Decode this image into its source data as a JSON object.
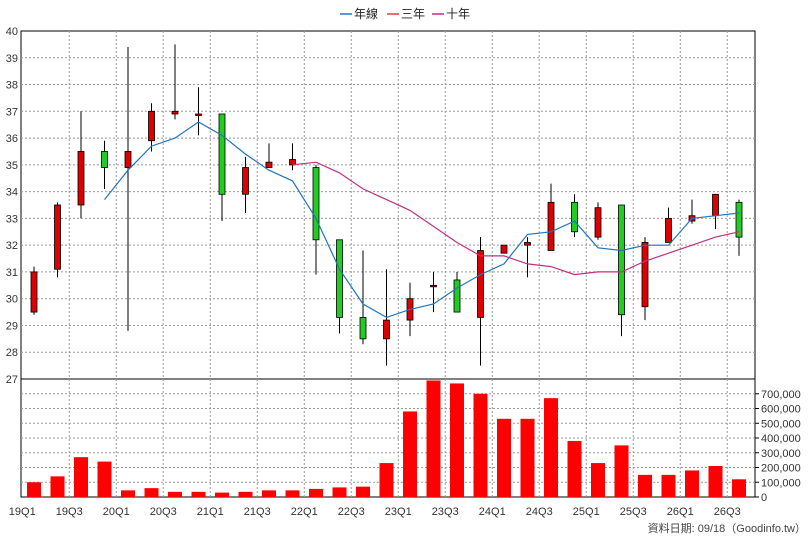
{
  "chart_data": {
    "type": "candlestick",
    "legend": {
      "placement": "top-center",
      "items": [
        {
          "label": "年線",
          "color": "#1f77c0"
        },
        {
          "label": "三年",
          "color": "#e04040"
        },
        {
          "label": "十年",
          "color": "#c03080"
        }
      ]
    },
    "colors": {
      "up": "#dd0000",
      "down": "#22cc22",
      "volume": "#ff0000",
      "grid": "#999999"
    },
    "grid": true,
    "price_axis": {
      "ylim": [
        27,
        40
      ],
      "ticks": [
        "27",
        "28",
        "29",
        "30",
        "31",
        "32",
        "33",
        "34",
        "35",
        "36",
        "37",
        "38",
        "39",
        "40"
      ]
    },
    "volume_axis": {
      "ylim": [
        0,
        800000
      ],
      "ticks": [
        "0",
        "100,000",
        "200,000",
        "300,000",
        "400,000",
        "500,000",
        "600,000",
        "700,000"
      ]
    },
    "x_tick_labels": [
      "19Q1",
      "19Q3",
      "20Q1",
      "20Q3",
      "21Q1",
      "21Q3",
      "22Q1",
      "22Q3",
      "23Q1",
      "23Q3",
      "24Q1",
      "24Q3",
      "25Q1",
      "25Q3",
      "26Q1",
      "26Q3"
    ],
    "candles": [
      {
        "o": 29.5,
        "h": 31.2,
        "l": 29.4,
        "c": 31.0
      },
      {
        "o": 31.1,
        "h": 33.6,
        "l": 30.8,
        "c": 33.5
      },
      {
        "o": 33.5,
        "h": 37.0,
        "l": 33.0,
        "c": 35.5
      },
      {
        "o": 35.5,
        "h": 35.9,
        "l": 34.1,
        "c": 34.9
      },
      {
        "o": 34.9,
        "h": 39.4,
        "l": 28.8,
        "c": 35.5
      },
      {
        "o": 35.9,
        "h": 37.3,
        "l": 35.5,
        "c": 37.0
      },
      {
        "o": 36.9,
        "h": 39.5,
        "l": 36.7,
        "c": 37.0
      },
      {
        "o": 36.9,
        "h": 37.9,
        "l": 36.1,
        "c": 36.9
      },
      {
        "o": 36.9,
        "h": 36.9,
        "l": 32.9,
        "c": 33.9
      },
      {
        "o": 33.9,
        "h": 35.3,
        "l": 33.2,
        "c": 34.9
      },
      {
        "o": 34.9,
        "h": 35.8,
        "l": 34.9,
        "c": 35.1
      },
      {
        "o": 35.0,
        "h": 35.8,
        "l": 34.8,
        "c": 35.2
      },
      {
        "o": 34.9,
        "h": 35.0,
        "l": 30.9,
        "c": 32.2
      },
      {
        "o": 32.2,
        "h": 32.2,
        "l": 28.7,
        "c": 29.3
      },
      {
        "o": 29.3,
        "h": 31.8,
        "l": 28.3,
        "c": 28.5
      },
      {
        "o": 28.5,
        "h": 31.1,
        "l": 27.5,
        "c": 29.2
      },
      {
        "o": 29.2,
        "h": 30.6,
        "l": 28.6,
        "c": 30.0
      },
      {
        "o": 30.5,
        "h": 31.0,
        "l": 29.5,
        "c": 30.5
      },
      {
        "o": 30.7,
        "h": 31.0,
        "l": 29.5,
        "c": 29.5
      },
      {
        "o": 29.3,
        "h": 32.3,
        "l": 27.5,
        "c": 31.8
      },
      {
        "o": 31.7,
        "h": 32.0,
        "l": 31.7,
        "c": 32.0
      },
      {
        "o": 32.0,
        "h": 32.3,
        "l": 30.8,
        "c": 32.1
      },
      {
        "o": 31.8,
        "h": 34.3,
        "l": 31.8,
        "c": 33.6
      },
      {
        "o": 33.6,
        "h": 33.9,
        "l": 32.3,
        "c": 32.5
      },
      {
        "o": 32.3,
        "h": 33.6,
        "l": 32.2,
        "c": 33.4
      },
      {
        "o": 33.5,
        "h": 33.5,
        "l": 28.6,
        "c": 29.4
      },
      {
        "o": 29.7,
        "h": 32.3,
        "l": 29.2,
        "c": 32.1
      },
      {
        "o": 32.1,
        "h": 33.4,
        "l": 32.1,
        "c": 33.0
      },
      {
        "o": 32.9,
        "h": 33.7,
        "l": 32.8,
        "c": 33.1
      },
      {
        "o": 33.1,
        "h": 33.9,
        "l": 32.6,
        "c": 33.9
      },
      {
        "o": 33.6,
        "h": 33.7,
        "l": 31.6,
        "c": 32.3
      }
    ],
    "ma_year": [
      null,
      null,
      null,
      33.7,
      34.8,
      35.7,
      36.0,
      36.6,
      36.1,
      35.4,
      34.8,
      34.4,
      33.0,
      31.1,
      29.8,
      29.3,
      29.6,
      29.8,
      30.4,
      30.9,
      31.3,
      32.4,
      32.5,
      32.9,
      31.9,
      31.8,
      32.0,
      32.0,
      33.0,
      33.1,
      33.2
    ],
    "ma_ten": [
      null,
      null,
      null,
      null,
      null,
      null,
      null,
      null,
      null,
      null,
      null,
      35.0,
      35.1,
      34.7,
      34.1,
      33.7,
      33.3,
      32.7,
      32.1,
      31.6,
      31.6,
      31.3,
      31.2,
      30.9,
      31.0,
      31.0,
      31.4,
      31.7,
      32.0,
      32.3,
      32.5
    ],
    "volume": [
      100000,
      140000,
      270000,
      240000,
      45000,
      60000,
      35000,
      35000,
      30000,
      35000,
      45000,
      45000,
      55000,
      65000,
      70000,
      230000,
      580000,
      790000,
      770000,
      700000,
      530000,
      530000,
      670000,
      380000,
      230000,
      350000,
      150000,
      150000,
      180000,
      210000,
      120000
    ],
    "footer": "資料日期: 09/18（Goodinfo.tw）"
  }
}
